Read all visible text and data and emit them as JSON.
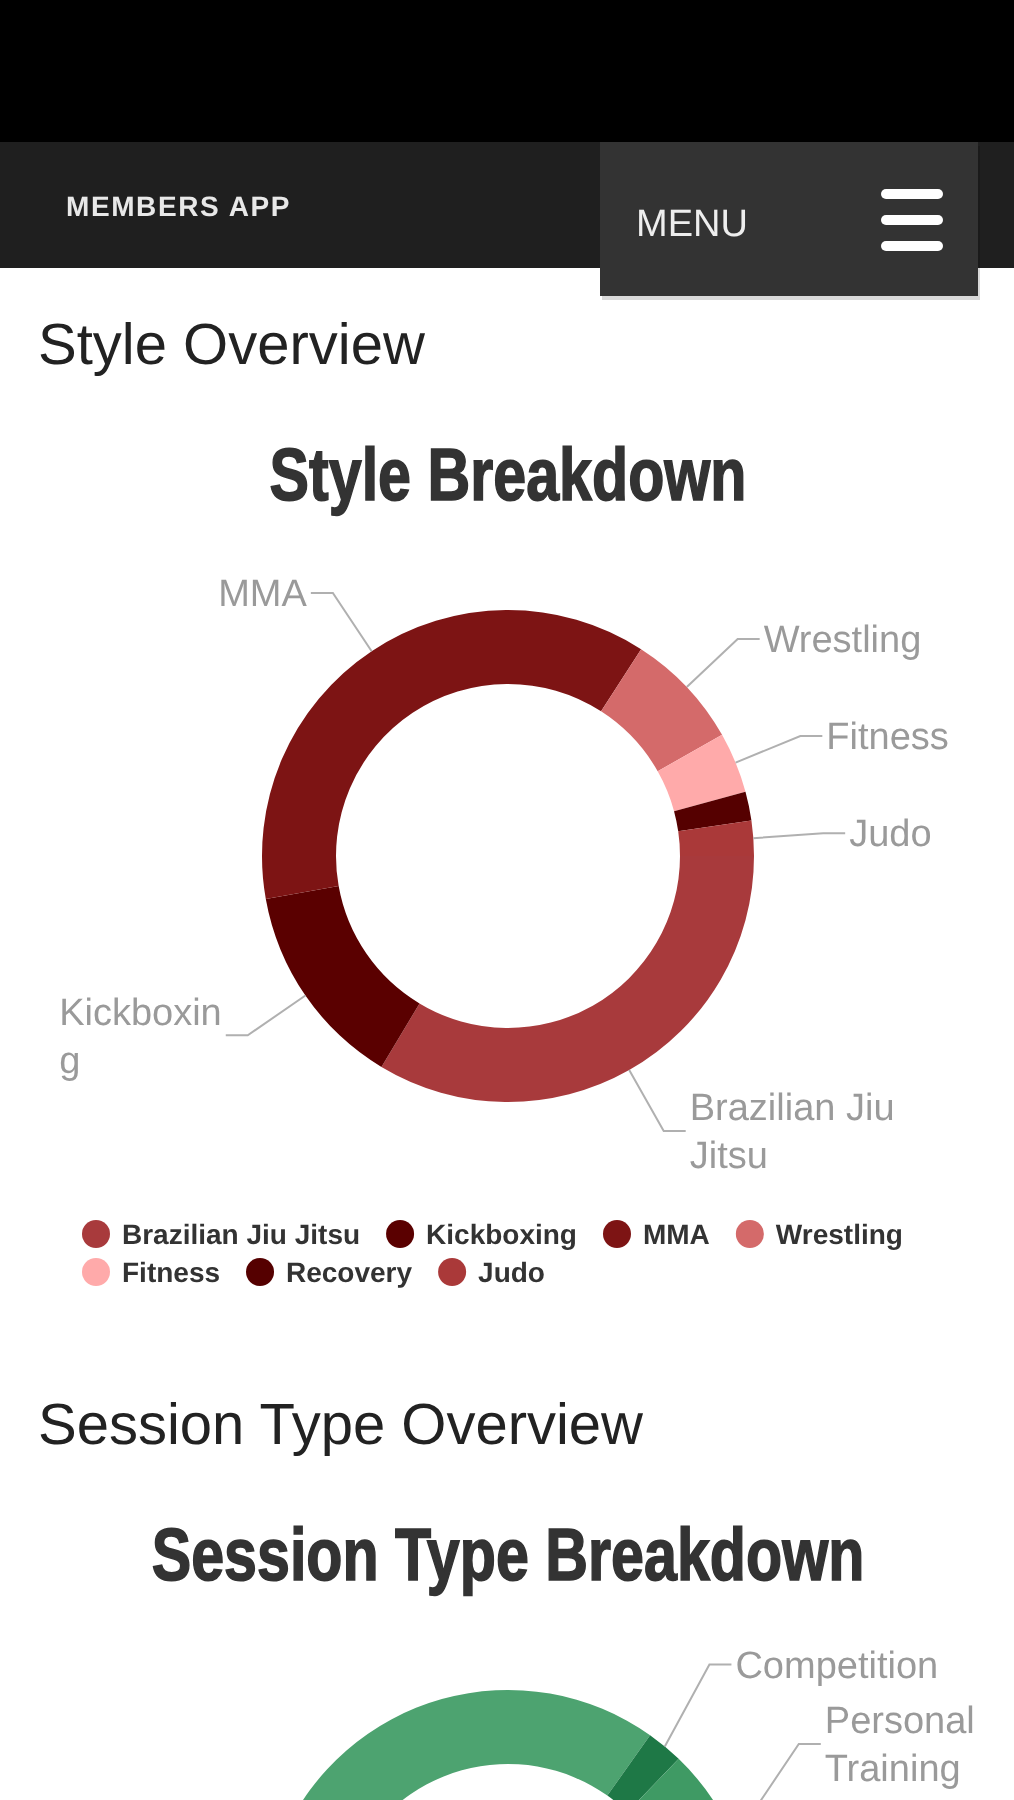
{
  "chart_data": [
    {
      "type": "donut",
      "title": "Style Breakdown",
      "categories": [
        "Brazilian Jiu Jitsu",
        "Kickboxing",
        "MMA",
        "Wrestling",
        "Fitness",
        "Recovery",
        "Judo"
      ],
      "values": [
        33.6,
        13.6,
        36.9,
        7.7,
        4.0,
        1.9,
        2.3
      ],
      "colors": [
        "#a83a3c",
        "#5a0000",
        "#7d1414",
        "#d46a6a",
        "#ffaaaa",
        "#550000",
        "#aa3939"
      ],
      "legend": "bottom",
      "annotations": [
        "MEMBERS APP",
        "MENU",
        "Style Overview"
      ]
    },
    {
      "type": "donut",
      "title": "Session Type Breakdown",
      "categories": [
        null,
        "Competition",
        "Personal Training"
      ],
      "values": [
        84.8,
        2.4,
        12.8
      ],
      "colors": [
        "#4da370",
        "#1e7846",
        "#3f9a64"
      ],
      "annotations": [
        "Session Type Overview"
      ]
    }
  ]
}
